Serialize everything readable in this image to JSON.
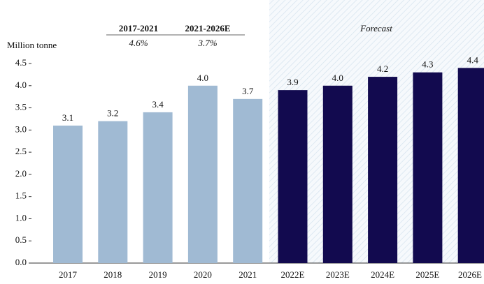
{
  "chart_data": {
    "type": "bar",
    "y_label": "Million tonne",
    "categories": [
      "2017",
      "2018",
      "2019",
      "2020",
      "2021",
      "2022E",
      "2023E",
      "2024E",
      "2025E",
      "2026E"
    ],
    "values": [
      3.1,
      3.2,
      3.4,
      4.0,
      3.7,
      3.9,
      4.0,
      4.2,
      4.3,
      4.4
    ],
    "value_labels": [
      "3.1",
      "3.2",
      "3.4",
      "4.0",
      "3.7",
      "3.9",
      "4.0",
      "4.2",
      "4.3",
      "4.4"
    ],
    "colors": [
      "#a0bad3",
      "#a0bad3",
      "#a0bad3",
      "#a0bad3",
      "#a0bad3",
      "#120a4f",
      "#120a4f",
      "#120a4f",
      "#120a4f",
      "#120a4f"
    ],
    "ylim": [
      0,
      4.5
    ],
    "yticks": [
      {
        "value": 0,
        "label": "0.0"
      },
      0.5,
      {
        "value": 1,
        "label": "1.0"
      },
      1.5,
      {
        "value": 2,
        "label": "2.0"
      },
      2.5,
      {
        "value": 3,
        "label": "3.0"
      },
      3.5,
      {
        "value": 4,
        "label": "4.0"
      },
      4.5
    ],
    "forecast_label": "Forecast",
    "cagr": [
      {
        "period": "2017-2021",
        "value": "4.6%"
      },
      {
        "period": "2021-2026E",
        "value": "3.7%"
      }
    ]
  }
}
